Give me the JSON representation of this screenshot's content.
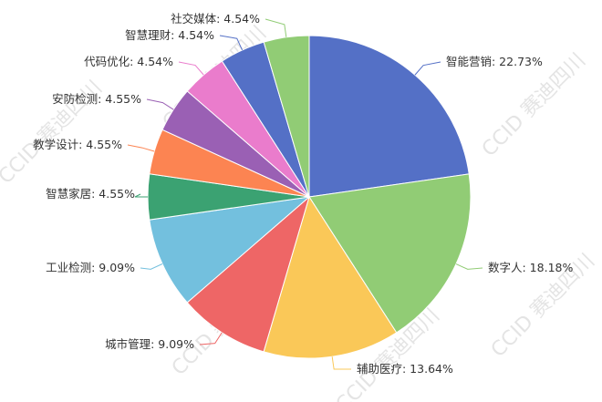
{
  "watermark": "CCID 赛迪四川",
  "chart_data": {
    "type": "pie",
    "start_angle": "top, clockwise",
    "label_format": "{name}: {percent}%",
    "slices": [
      {
        "name": "智能营销",
        "value": 22.73,
        "color": "#5470c6"
      },
      {
        "name": "数字人",
        "value": 18.18,
        "color": "#91cc75"
      },
      {
        "name": "辅助医疗",
        "value": 13.64,
        "color": "#fac858"
      },
      {
        "name": "城市管理",
        "value": 9.09,
        "color": "#ee6666"
      },
      {
        "name": "工业检测",
        "value": 9.09,
        "color": "#73c0de"
      },
      {
        "name": "智慧家居",
        "value": 4.55,
        "color": "#3ba272"
      },
      {
        "name": "教学设计",
        "value": 4.55,
        "color": "#fc8452"
      },
      {
        "name": "安防检测",
        "value": 4.55,
        "color": "#9a60b4"
      },
      {
        "name": "代码优化",
        "value": 4.54,
        "color": "#ea7ccc"
      },
      {
        "name": "智慧理财",
        "value": 4.54,
        "color": "#5470c6"
      },
      {
        "name": "社交媒体",
        "value": 4.54,
        "color": "#91cc75"
      }
    ]
  }
}
